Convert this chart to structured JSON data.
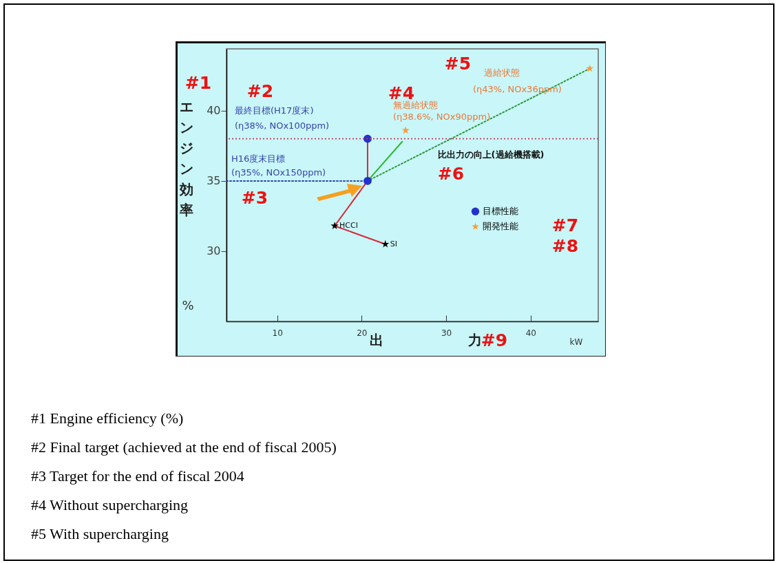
{
  "chart_data": {
    "type": "scatter",
    "ylabel": "エンジン効率",
    "xlabel": "出力",
    "xlim": [
      4,
      48
    ],
    "ylim": [
      25,
      44.4
    ],
    "xticks": [
      10,
      20,
      30,
      40
    ],
    "yticks": [
      30,
      35,
      40
    ],
    "legend": "right",
    "series": [
      {
        "type": "line",
        "color": "#d8283c",
        "x": [
          22.8,
          16.8,
          20.7,
          20.7
        ],
        "values": [
          30.5,
          31.8,
          35,
          38
        ],
        "line_style": "solid"
      },
      {
        "type": "line",
        "color": "#2db82d",
        "x": [
          20.7,
          24.8
        ],
        "values": [
          35,
          37.8
        ],
        "line_style": "solid"
      },
      {
        "type": "line",
        "color": "#2a9a3a",
        "x": [
          20.7,
          47
        ],
        "values": [
          35,
          43
        ],
        "line_style": "dotted"
      },
      {
        "type": "line",
        "color": "#3344aa",
        "x": [
          4,
          20.7
        ],
        "values": [
          35,
          35
        ],
        "line_style": "dotted"
      },
      {
        "color": "#000000",
        "marker": "star",
        "x": [
          16.8,
          22.8
        ],
        "values": [
          31.8,
          30.5
        ]
      },
      {
        "name": "目標性能",
        "color": "#2233cc",
        "marker": "circle",
        "x": [
          20.7,
          20.7
        ],
        "values": [
          35,
          38
        ]
      },
      {
        "name": "開発性能",
        "color": "#ff9933",
        "marker": "star",
        "x": [
          25.2,
          47
        ],
        "values": [
          38.6,
          43
        ]
      }
    ],
    "ref_lines": [
      {
        "axis": "y",
        "value": 38,
        "color": "#cc3355",
        "line_style": "dotted"
      }
    ],
    "annotations": [
      "#1",
      "#2",
      "#3",
      "#4",
      "#5",
      "#6",
      "#7",
      "#8",
      "#9",
      "最終目標(H17度末)",
      "(η38%, NOx100ppm)",
      "H16度末目標",
      "(η35%, NOx150ppm)",
      "無過給状態",
      "(η38.6%, NOx90ppm)",
      "過給状態",
      "(η43%, NOx36ppm)",
      "比出力の向上(過給機搭載)",
      "%",
      "kW",
      {
        "text": "HCCI",
        "x": 16.8,
        "y": 31.8
      },
      {
        "text": "SI",
        "x": 22.8,
        "y": 30.5
      },
      "#1 Engine efficiency (%)",
      "#2 Final target (achieved at the end of fiscal 2005)",
      "#3 Target for the end of fiscal 2004",
      "#4 Without supercharging",
      "#5 With supercharging"
    ]
  }
}
